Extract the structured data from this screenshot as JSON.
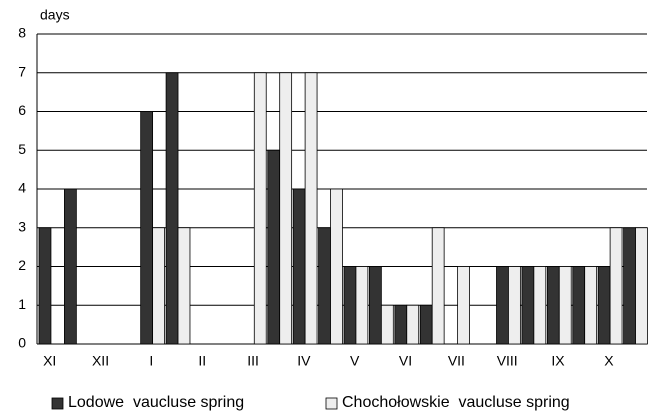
{
  "chart_data": {
    "type": "bar",
    "y_label": "days",
    "categories": [
      "XI",
      null,
      "XII",
      null,
      "I",
      null,
      "II",
      null,
      "III",
      null,
      "IV",
      null,
      "V",
      null,
      "VI",
      null,
      "VII",
      null,
      "VIII",
      null,
      "IX",
      null,
      "X",
      null
    ],
    "series": [
      {
        "name": "Lodowe  vaucluse spring",
        "color": "#333333",
        "values": [
          3,
          4,
          0,
          0,
          6,
          7,
          0,
          0,
          0,
          5,
          4,
          3,
          2,
          2,
          1,
          1,
          0,
          0,
          2,
          2,
          2,
          2,
          2,
          3
        ]
      },
      {
        "name": "Chochołowskie  vaucluse spring",
        "color": "#eeeeee",
        "values": [
          0,
          0,
          0,
          0,
          3,
          3,
          0,
          0,
          7,
          7,
          7,
          4,
          2,
          1,
          1,
          3,
          2,
          0,
          2,
          2,
          2,
          2,
          3,
          3
        ]
      }
    ],
    "ylim": [
      0,
      8
    ],
    "yticks": [
      0,
      1,
      2,
      3,
      4,
      5,
      6,
      7,
      8
    ],
    "grid": true
  }
}
